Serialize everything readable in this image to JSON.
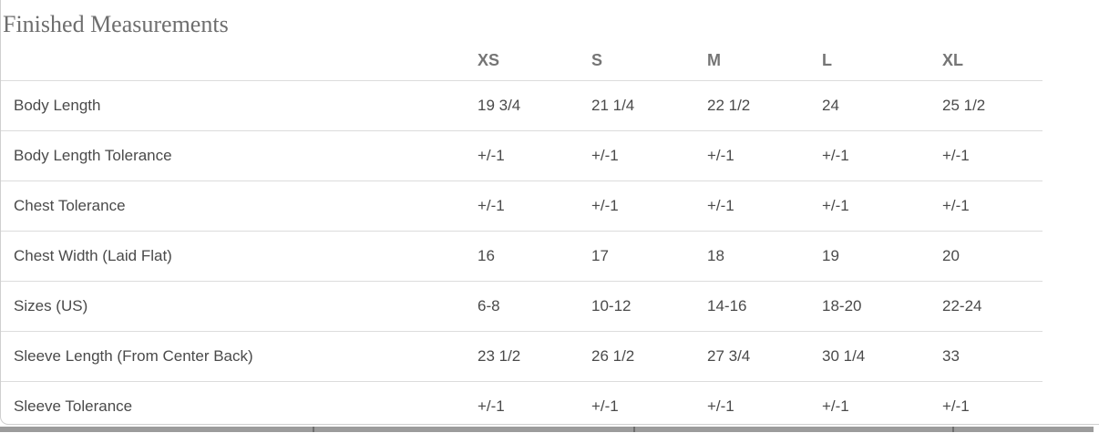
{
  "section": {
    "title": "Finished Measurements"
  },
  "measurements_table": {
    "size_headers": [
      "XS",
      "S",
      "M",
      "L",
      "XL"
    ],
    "rows": [
      {
        "label": "Body Length",
        "values": [
          "19 3/4",
          "21 1/4",
          "22 1/2",
          "24",
          "25 1/2"
        ]
      },
      {
        "label": "Body Length Tolerance",
        "values": [
          "+/-1",
          "+/-1",
          "+/-1",
          "+/-1",
          "+/-1"
        ]
      },
      {
        "label": "Chest Tolerance",
        "values": [
          "+/-1",
          "+/-1",
          "+/-1",
          "+/-1",
          "+/-1"
        ]
      },
      {
        "label": "Chest Width (Laid Flat)",
        "values": [
          "16",
          "17",
          "18",
          "19",
          "20"
        ]
      },
      {
        "label": "Sizes (US)",
        "values": [
          "6-8",
          "10-12",
          "14-16",
          "18-20",
          "22-24"
        ]
      },
      {
        "label": "Sleeve Length (From Center Back)",
        "values": [
          "23 1/2",
          "26 1/2",
          "27 3/4",
          "30 1/4",
          "33"
        ]
      },
      {
        "label": "Sleeve Tolerance",
        "values": [
          "+/-1",
          "+/-1",
          "+/-1",
          "+/-1",
          "+/-1"
        ]
      }
    ]
  },
  "colors": {
    "title_text": "#6e6e6e",
    "header_text": "#757575",
    "cell_text": "#4a4a4a",
    "row_border": "#dcdcdc",
    "card_edge": "#cfcfcf",
    "cutoff_strip": "#9c9c9c",
    "cutoff_strip_divider": "#6f6f6f"
  }
}
